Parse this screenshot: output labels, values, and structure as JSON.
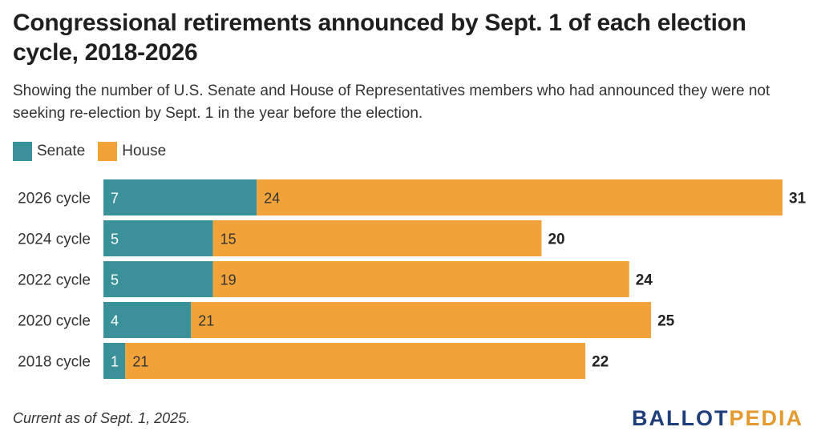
{
  "title": "Congressional retirements announced by Sept. 1 of each election cycle, 2018-2026",
  "subtitle": "Showing the number of U.S. Senate and House of Representatives members who had announced they were not seeking re-election by Sept. 1 in the year before the election.",
  "footnote": "Current as of Sept. 1, 2025.",
  "logo": {
    "part1": "BALLOT",
    "part2": "PEDIA"
  },
  "colors": {
    "senate": "#3a9199",
    "house": "#f1a33a"
  },
  "chart_data": {
    "type": "bar",
    "orientation": "horizontal",
    "stacked": true,
    "categories": [
      "2026 cycle",
      "2024 cycle",
      "2022 cycle",
      "2020 cycle",
      "2018 cycle"
    ],
    "series": [
      {
        "name": "Senate",
        "values": [
          7,
          5,
          5,
          4,
          1
        ]
      },
      {
        "name": "House",
        "values": [
          24,
          15,
          19,
          21,
          21
        ]
      }
    ],
    "totals": [
      31,
      20,
      24,
      25,
      22
    ],
    "xlim": [
      0,
      31
    ],
    "legend_position": "top-left",
    "grid": false
  }
}
